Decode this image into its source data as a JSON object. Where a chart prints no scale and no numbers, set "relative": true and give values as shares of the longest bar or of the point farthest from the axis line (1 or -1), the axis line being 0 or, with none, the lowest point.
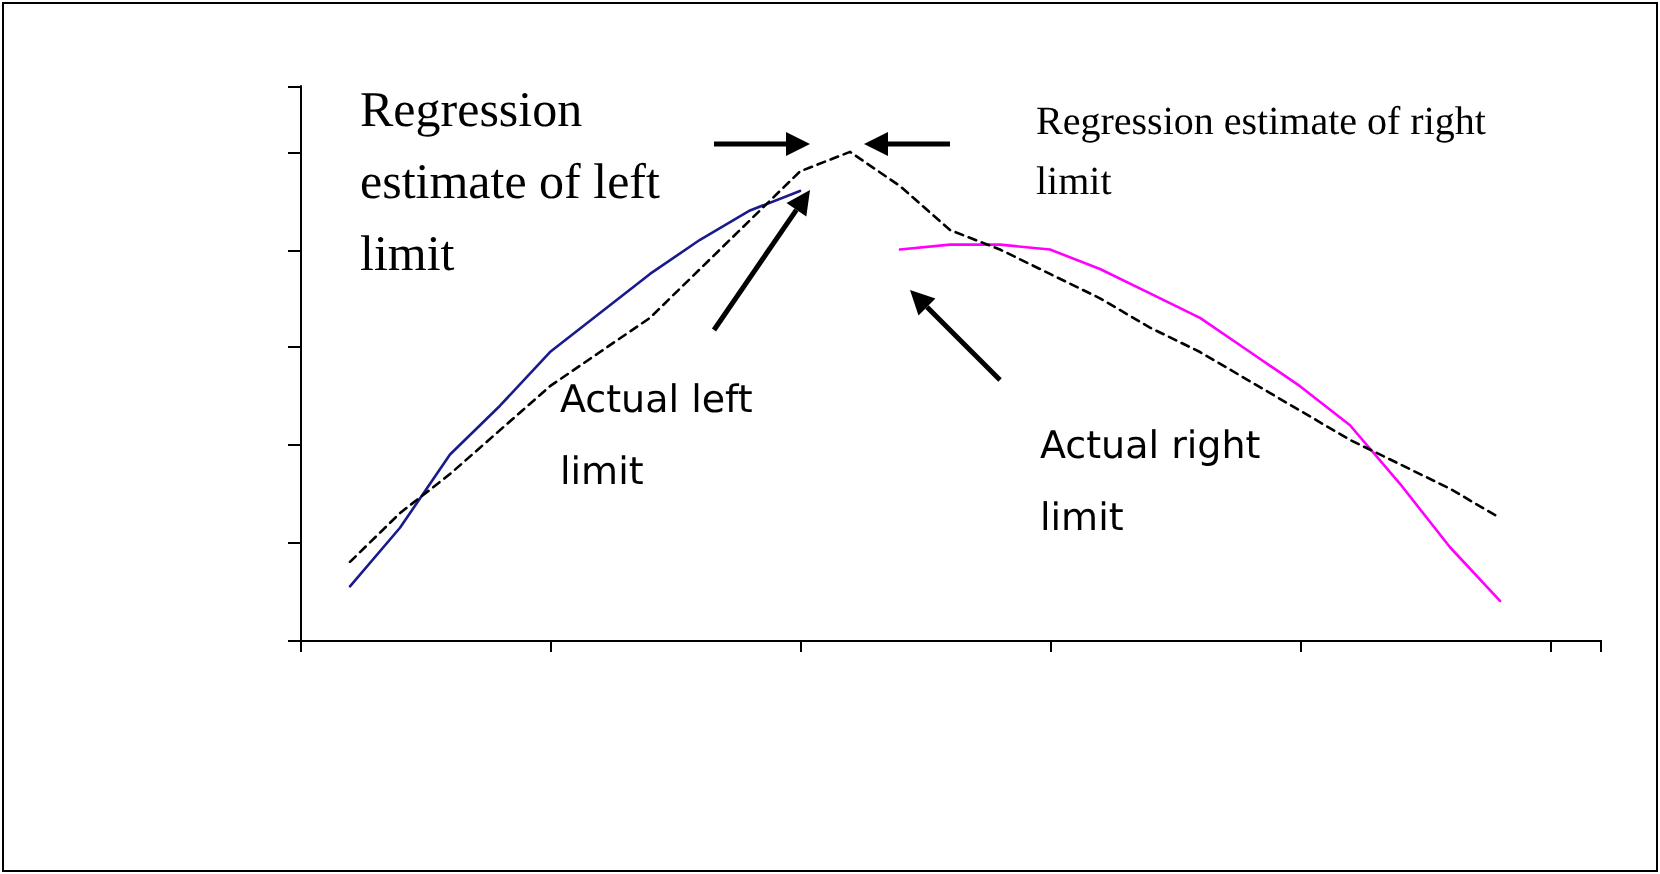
{
  "chart_data": {
    "type": "line",
    "relative": true,
    "marker": "none",
    "grid": false,
    "categories": [
      null,
      null,
      null,
      null,
      null,
      null,
      null,
      null,
      null,
      null,
      null,
      null,
      null,
      null,
      null,
      null,
      null,
      null,
      null,
      null,
      null,
      null,
      null,
      null,
      null,
      null,
      null
    ],
    "series": [
      {
        "color": "#1a1a8c",
        "line_style": "solid",
        "values": [
          null,
          0.11,
          0.23,
          0.38,
          0.48,
          0.59,
          0.67,
          0.75,
          0.82,
          0.88,
          0.92,
          null,
          null,
          null,
          null,
          null,
          null,
          null,
          null,
          null,
          null,
          null,
          null,
          null,
          null,
          null,
          null
        ]
      },
      {
        "color": "#ff00ff",
        "line_style": "solid",
        "values": [
          null,
          null,
          null,
          null,
          null,
          null,
          null,
          null,
          null,
          null,
          null,
          null,
          0.8,
          0.81,
          0.81,
          0.8,
          0.76,
          0.71,
          0.66,
          0.59,
          0.52,
          0.44,
          0.32,
          0.19,
          0.08,
          null,
          null
        ]
      },
      {
        "color": "#000000",
        "line_style": "dashed",
        "values": [
          null,
          0.16,
          0.26,
          0.34,
          0.43,
          0.52,
          0.59,
          0.66,
          0.76,
          0.86,
          0.96,
          1,
          0.93,
          0.84,
          0.8,
          0.75,
          0.7,
          0.64,
          0.59,
          0.53,
          0.47,
          0.41,
          0.36,
          0.31,
          0.25,
          null,
          null
        ]
      }
    ],
    "annotations": [
      "Regression estimate of left limit",
      "Regression estimate of right limit",
      "Actual left limit",
      "Actual right limit"
    ]
  }
}
